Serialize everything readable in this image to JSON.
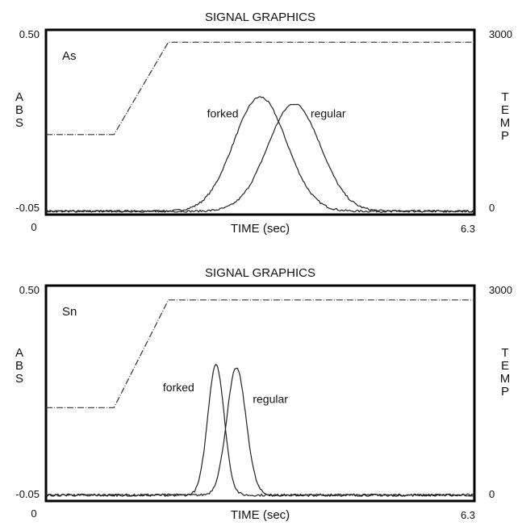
{
  "chart_data": [
    {
      "type": "line",
      "title": "SIGNAL GRAPHICS",
      "element": "As",
      "xlabel": "TIME (sec)",
      "ylabel": "ABS",
      "y2label": "TEMP",
      "xlim": [
        0,
        6.3
      ],
      "ylim": [
        -0.05,
        0.5
      ],
      "y2lim": [
        0,
        3000
      ],
      "x_ticks": [
        "0",
        "6.3"
      ],
      "y_ticks": [
        "0.50",
        "-0.05"
      ],
      "y2_ticks": [
        "3000",
        "0"
      ],
      "temperature": {
        "x": [
          0,
          1.0,
          1.8,
          6.3
        ],
        "y": [
          1300,
          1300,
          2800,
          2800
        ]
      },
      "series": [
        {
          "name": "forked",
          "peak_x": 3.15,
          "peak_y": 0.3,
          "width": 0.55,
          "baseline": -0.04,
          "label_x": 2.6,
          "label_y": 0.24
        },
        {
          "name": "regular",
          "peak_x": 3.65,
          "peak_y": 0.28,
          "width": 0.55,
          "baseline": -0.04,
          "label_x": 4.15,
          "label_y": 0.24
        }
      ],
      "grid": false
    },
    {
      "type": "line",
      "title": "SIGNAL GRAPHICS",
      "element": "Sn",
      "xlabel": "TIME (sec)",
      "ylabel": "ABS",
      "y2label": "TEMP",
      "xlim": [
        0,
        6.3
      ],
      "ylim": [
        -0.05,
        0.5
      ],
      "y2lim": [
        0,
        3000
      ],
      "x_ticks": [
        "0",
        "6.3"
      ],
      "y_ticks": [
        "0.50",
        "-0.05"
      ],
      "y2_ticks": [
        "3000",
        "0"
      ],
      "temperature": {
        "x": [
          0,
          1.0,
          1.8,
          6.3
        ],
        "y": [
          1300,
          1300,
          2800,
          2800
        ]
      },
      "series": [
        {
          "name": "forked",
          "peak_x": 2.5,
          "peak_y": 0.3,
          "width": 0.17,
          "baseline": -0.035,
          "label_x": 1.95,
          "label_y": 0.23
        },
        {
          "name": "regular",
          "peak_x": 2.8,
          "peak_y": 0.29,
          "width": 0.2,
          "baseline": -0.035,
          "label_x": 3.3,
          "label_y": 0.2
        }
      ],
      "grid": false
    }
  ]
}
